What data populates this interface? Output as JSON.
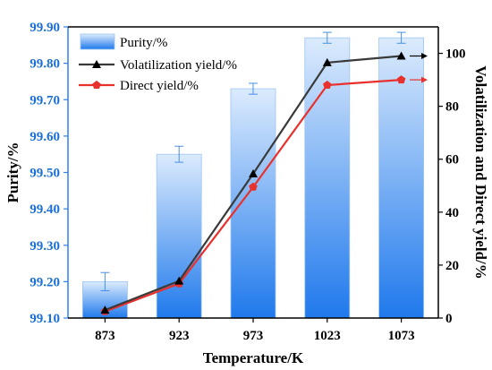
{
  "chart_data": {
    "type": "bar+line",
    "categories": [
      "873",
      "923",
      "973",
      "1023",
      "1073"
    ],
    "xlabel": "Temperature/K",
    "ylabel_left": "Purity/%",
    "ylabel_right": "Volatilization and Direct yield/%",
    "y_left_lim": [
      99.1,
      99.9
    ],
    "y_left_ticks": [
      "99.10",
      "99.20",
      "99.30",
      "99.40",
      "99.50",
      "99.60",
      "99.70",
      "99.80",
      "99.90"
    ],
    "y_right_lim": [
      0,
      110
    ],
    "y_right_ticks": [
      "0",
      "20",
      "40",
      "60",
      "80",
      "100"
    ],
    "legend_position": "top-left",
    "series": [
      {
        "name": "Purity/%",
        "type": "bar",
        "axis": "left",
        "color": "#2f80ed",
        "values": [
          99.2,
          99.55,
          99.73,
          99.87,
          99.87
        ],
        "errors": [
          0.025,
          0.022,
          0.015,
          0.015,
          0.015
        ]
      },
      {
        "name": "Volatilization yield/%",
        "type": "line",
        "axis": "right",
        "color": "#3a3a3a",
        "marker": "triangle",
        "values": [
          3,
          14,
          54.5,
          96.5,
          99
        ]
      },
      {
        "name": "Direct yield/%",
        "type": "line",
        "axis": "right",
        "color": "#e8312c",
        "marker": "pentagon",
        "values": [
          2.5,
          13,
          49.5,
          88,
          90
        ]
      }
    ]
  }
}
